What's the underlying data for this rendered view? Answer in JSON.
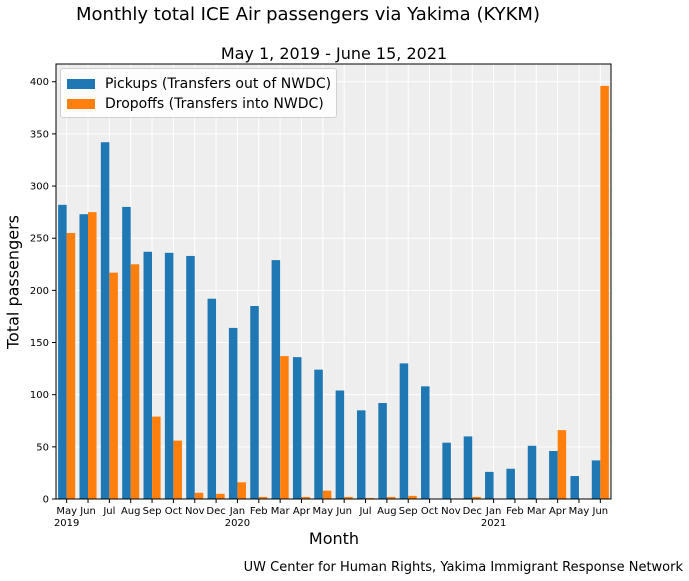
{
  "colors": {
    "pickups": "#1f77b4",
    "dropoffs": "#ff7f0e",
    "plot_bg": "#eeeeee",
    "grid": "#ffffff"
  },
  "page": {
    "title": "Monthly total ICE Air passengers via Yakima (KYKM)",
    "credit": "UW Center for Human Rights, Yakima Immigrant Response Network"
  },
  "chart_data": {
    "type": "bar",
    "title": "May 1, 2019 - June 15, 2021",
    "xlabel": "Month",
    "ylabel": "Total passengers",
    "grid": true,
    "legend_position": "top-left",
    "ylim": [
      0,
      417
    ],
    "yticks": [
      0,
      50,
      100,
      150,
      200,
      250,
      300,
      350,
      400
    ],
    "categories": [
      "May",
      "Jun",
      "Jul",
      "Aug",
      "Sep",
      "Oct",
      "Nov",
      "Dec",
      "Jan",
      "Feb",
      "Mar",
      "Apr",
      "May",
      "Jun",
      "Jul",
      "Aug",
      "Sep",
      "Oct",
      "Nov",
      "Dec",
      "Jan",
      "Feb",
      "Mar",
      "Apr",
      "May",
      "Jun"
    ],
    "year_labels": [
      {
        "index": 0,
        "label": "2019"
      },
      {
        "index": 8,
        "label": "2020"
      },
      {
        "index": 20,
        "label": "2021"
      }
    ],
    "series": [
      {
        "name": "Pickups (Transfers out of NWDC)",
        "color": "#1f77b4",
        "values": [
          282,
          273,
          342,
          280,
          237,
          236,
          233,
          192,
          164,
          185,
          229,
          136,
          124,
          104,
          85,
          92,
          130,
          108,
          54,
          60,
          26,
          29,
          51,
          46,
          22,
          37
        ]
      },
      {
        "name": "Dropoffs (Transfers into NWDC)",
        "color": "#ff7f0e",
        "values": [
          255,
          275,
          217,
          225,
          79,
          56,
          6,
          5,
          16,
          2,
          137,
          2,
          8,
          2,
          1,
          2,
          3,
          0,
          0,
          2,
          0,
          0,
          0,
          66,
          0,
          396
        ]
      }
    ]
  }
}
